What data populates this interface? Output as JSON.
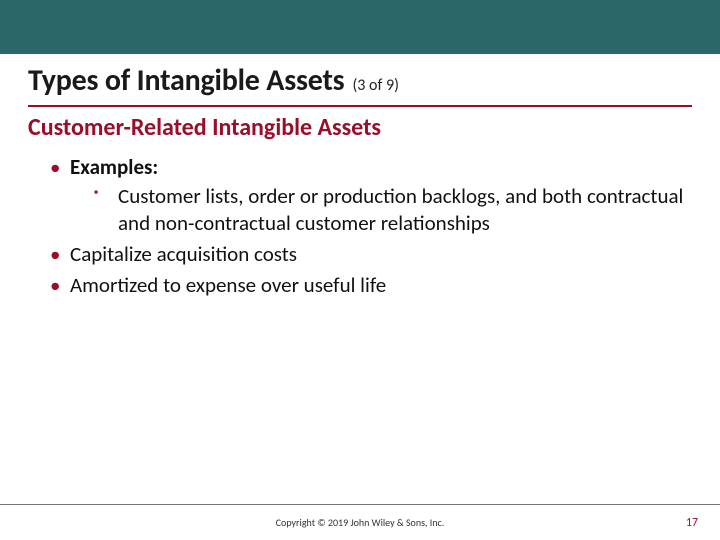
{
  "colors": {
    "top_bar": "#2b6668",
    "title_rule": "#9a0e2a",
    "subtitle": "#9a0e2a",
    "bullet": "#9a0e2a",
    "pagenum": "#9a0e2a"
  },
  "title": {
    "main": "Types of Intangible Assets",
    "counter": "(3 of 9)"
  },
  "subtitle": "Customer-Related Intangible Assets",
  "bullets": [
    {
      "lead": "Examples:",
      "sub": [
        "Customer lists, order or production backlogs, and both contractual and non-contractual customer relationships"
      ]
    },
    {
      "text": "Capitalize acquisition costs"
    },
    {
      "text": "Amortized to expense over useful life"
    }
  ],
  "footer": {
    "copyright": "Copyright © 2019 John Wiley & Sons, Inc.",
    "page": "17"
  }
}
